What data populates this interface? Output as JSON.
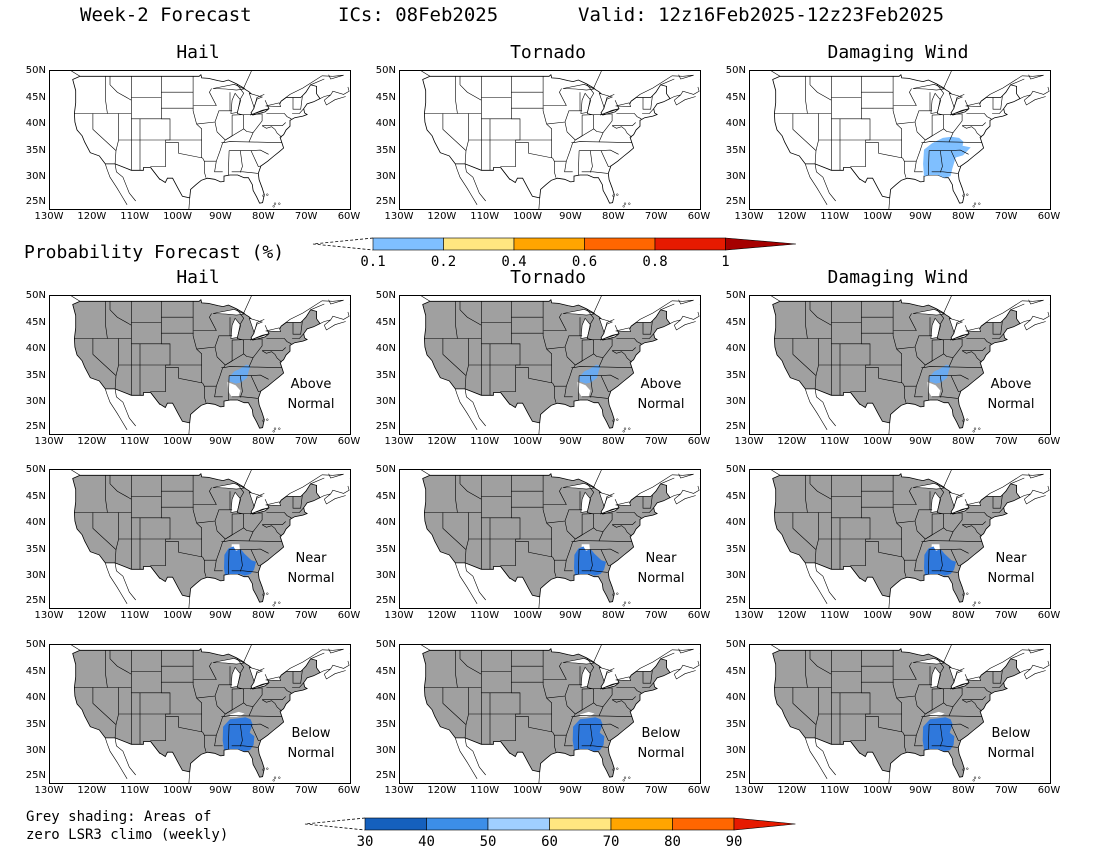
{
  "header": {
    "title": "Week-2 Forecast",
    "ics": "ICs: 08Feb2025",
    "valid": "Valid: 12z16Feb2025-12z23Feb2025"
  },
  "columns": [
    "Hail",
    "Tornado",
    "Damaging Wind"
  ],
  "lat_labels": [
    "50N",
    "45N",
    "40N",
    "35N",
    "30N",
    "25N"
  ],
  "lon_labels": [
    "130W",
    "120W",
    "110W",
    "100W",
    "90W",
    "80W",
    "70W",
    "60W"
  ],
  "top_legend": {
    "title": "Probability Forecast (%)",
    "ticks": [
      "0.1",
      "0.2",
      "0.4",
      "0.6",
      "0.8",
      "1"
    ],
    "colors": [
      "#7fbfff",
      "#ffe680",
      "#ffa500",
      "#ff6600",
      "#e61a00",
      "#a50000"
    ]
  },
  "rows": [
    {
      "category": [
        "Above",
        "Normal"
      ]
    },
    {
      "category": [
        "Near",
        "Normal"
      ]
    },
    {
      "category": [
        "Below",
        "Normal"
      ]
    }
  ],
  "bottom_legend": {
    "ticks": [
      "30",
      "40",
      "50",
      "60",
      "70",
      "80",
      "90"
    ],
    "colors": [
      "#1560bd",
      "#3c8ee8",
      "#a0cfff",
      "#ffe680",
      "#ffa500",
      "#ff6600",
      "#e61a00"
    ]
  },
  "note": {
    "line1": "Grey shading: Areas of",
    "line2": "zero LSR3 climo (weekly)"
  },
  "colors": {
    "grey_mask": "#a0a0a0",
    "prob_fill": "#7fbfff",
    "cat_dark": "#2f78dc",
    "cat_light": "#6aaaf0"
  }
}
